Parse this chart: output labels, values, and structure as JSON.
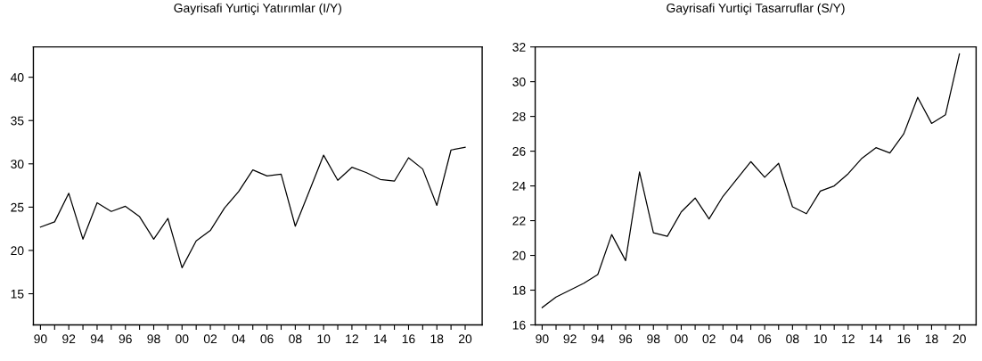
{
  "chart_data": [
    {
      "type": "line",
      "title": "Gayrisafi Yurtiçi Yatırımlar (I/Y)",
      "x": [
        1990,
        1991,
        1992,
        1993,
        1994,
        1995,
        1996,
        1997,
        1998,
        1999,
        2000,
        2001,
        2002,
        2003,
        2004,
        2005,
        2006,
        2007,
        2008,
        2009,
        2010,
        2011,
        2012,
        2013,
        2014,
        2015,
        2016,
        2017,
        2018,
        2019,
        2020
      ],
      "series": [
        {
          "color": "#000000",
          "values": [
            22.7,
            23.3,
            26.6,
            21.3,
            25.5,
            24.5,
            25.1,
            23.9,
            21.3,
            23.7,
            18.0,
            21.1,
            22.3,
            24.9,
            26.8,
            29.3,
            28.6,
            28.8,
            22.8,
            26.9,
            31.0,
            28.1,
            29.6,
            29.0,
            28.2,
            28.0,
            30.7,
            29.4,
            25.2,
            31.6,
            31.9
          ]
        }
      ],
      "xlim": [
        1989.5,
        2021.2
      ],
      "ylim": [
        11.4,
        43.5
      ],
      "yticks": [
        15,
        20,
        25,
        30,
        35,
        40
      ],
      "xticks": [
        {
          "value": 1990,
          "label": "90"
        },
        {
          "value": 1991,
          "label": null
        },
        {
          "value": 1992,
          "label": "92"
        },
        {
          "value": 1993,
          "label": null
        },
        {
          "value": 1994,
          "label": "94"
        },
        {
          "value": 1995,
          "label": null
        },
        {
          "value": 1996,
          "label": "96"
        },
        {
          "value": 1997,
          "label": null
        },
        {
          "value": 1998,
          "label": "98"
        },
        {
          "value": 1999,
          "label": null
        },
        {
          "value": 2000,
          "label": "00"
        },
        {
          "value": 2001,
          "label": null
        },
        {
          "value": 2002,
          "label": "02"
        },
        {
          "value": 2003,
          "label": null
        },
        {
          "value": 2004,
          "label": "04"
        },
        {
          "value": 2005,
          "label": null
        },
        {
          "value": 2006,
          "label": "06"
        },
        {
          "value": 2007,
          "label": null
        },
        {
          "value": 2008,
          "label": "08"
        },
        {
          "value": 2009,
          "label": null
        },
        {
          "value": 2010,
          "label": "10"
        },
        {
          "value": 2011,
          "label": null
        },
        {
          "value": 2012,
          "label": "12"
        },
        {
          "value": 2013,
          "label": null
        },
        {
          "value": 2014,
          "label": "14"
        },
        {
          "value": 2015,
          "label": null
        },
        {
          "value": 2016,
          "label": "16"
        },
        {
          "value": 2017,
          "label": null
        },
        {
          "value": 2018,
          "label": "18"
        },
        {
          "value": 2019,
          "label": null
        },
        {
          "value": 2020,
          "label": "20"
        }
      ],
      "grid": false,
      "marker": "none",
      "line_style": "solid"
    },
    {
      "type": "line",
      "title": "Gayrisafi Yurtiçi Tasarruflar (S/Y)",
      "x": [
        1990,
        1991,
        1992,
        1993,
        1994,
        1995,
        1996,
        1997,
        1998,
        1999,
        2000,
        2001,
        2002,
        2003,
        2004,
        2005,
        2006,
        2007,
        2008,
        2009,
        2010,
        2011,
        2012,
        2013,
        2014,
        2015,
        2016,
        2017,
        2018,
        2019,
        2020
      ],
      "series": [
        {
          "color": "#000000",
          "values": [
            17.0,
            17.6,
            18.0,
            18.4,
            18.9,
            21.2,
            19.7,
            24.8,
            21.3,
            21.1,
            22.5,
            23.3,
            22.1,
            23.4,
            24.4,
            25.4,
            24.5,
            25.3,
            22.8,
            22.4,
            23.7,
            24.0,
            24.7,
            25.6,
            26.2,
            25.9,
            27.0,
            29.1,
            27.6,
            28.1,
            31.6
          ]
        }
      ],
      "xlim": [
        1989.5,
        2021.2
      ],
      "ylim": [
        16,
        32
      ],
      "yticks": [
        16,
        18,
        20,
        22,
        24,
        26,
        28,
        30,
        32
      ],
      "xticks": [
        {
          "value": 1990,
          "label": "90"
        },
        {
          "value": 1991,
          "label": null
        },
        {
          "value": 1992,
          "label": "92"
        },
        {
          "value": 1993,
          "label": null
        },
        {
          "value": 1994,
          "label": "94"
        },
        {
          "value": 1995,
          "label": null
        },
        {
          "value": 1996,
          "label": "96"
        },
        {
          "value": 1997,
          "label": null
        },
        {
          "value": 1998,
          "label": "98"
        },
        {
          "value": 1999,
          "label": null
        },
        {
          "value": 2000,
          "label": "00"
        },
        {
          "value": 2001,
          "label": null
        },
        {
          "value": 2002,
          "label": "02"
        },
        {
          "value": 2003,
          "label": null
        },
        {
          "value": 2004,
          "label": "04"
        },
        {
          "value": 2005,
          "label": null
        },
        {
          "value": 2006,
          "label": "06"
        },
        {
          "value": 2007,
          "label": null
        },
        {
          "value": 2008,
          "label": "08"
        },
        {
          "value": 2009,
          "label": null
        },
        {
          "value": 2010,
          "label": "10"
        },
        {
          "value": 2011,
          "label": null
        },
        {
          "value": 2012,
          "label": "12"
        },
        {
          "value": 2013,
          "label": null
        },
        {
          "value": 2014,
          "label": "14"
        },
        {
          "value": 2015,
          "label": null
        },
        {
          "value": 2016,
          "label": "16"
        },
        {
          "value": 2017,
          "label": null
        },
        {
          "value": 2018,
          "label": "18"
        },
        {
          "value": 2019,
          "label": null
        },
        {
          "value": 2020,
          "label": "20"
        }
      ],
      "grid": false,
      "marker": "none",
      "line_style": "solid"
    }
  ]
}
